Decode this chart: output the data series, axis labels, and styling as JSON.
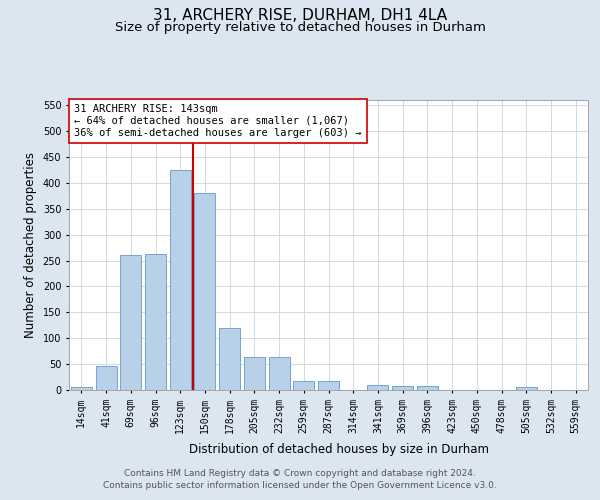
{
  "title_line1": "31, ARCHERY RISE, DURHAM, DH1 4LA",
  "title_line2": "Size of property relative to detached houses in Durham",
  "xlabel": "Distribution of detached houses by size in Durham",
  "ylabel": "Number of detached properties",
  "categories": [
    "14sqm",
    "41sqm",
    "69sqm",
    "96sqm",
    "123sqm",
    "150sqm",
    "178sqm",
    "205sqm",
    "232sqm",
    "259sqm",
    "287sqm",
    "314sqm",
    "341sqm",
    "369sqm",
    "396sqm",
    "423sqm",
    "450sqm",
    "478sqm",
    "505sqm",
    "532sqm",
    "559sqm"
  ],
  "values": [
    5,
    47,
    260,
    263,
    425,
    380,
    120,
    63,
    63,
    17,
    17,
    0,
    10,
    8,
    7,
    0,
    0,
    0,
    5,
    0,
    0
  ],
  "bar_color": "#b8d0e8",
  "bar_edge_color": "#6699cc",
  "vline_color": "#cc0000",
  "annotation_text": "31 ARCHERY RISE: 143sqm\n← 64% of detached houses are smaller (1,067)\n36% of semi-detached houses are larger (603) →",
  "annotation_box_color": "#ffffff",
  "annotation_box_edge_color": "#cc0000",
  "ylim": [
    0,
    560
  ],
  "yticks": [
    0,
    50,
    100,
    150,
    200,
    250,
    300,
    350,
    400,
    450,
    500,
    550
  ],
  "bg_color": "#dce6f0",
  "plot_bg_color": "#ffffff",
  "footer_line1": "Contains HM Land Registry data © Crown copyright and database right 2024.",
  "footer_line2": "Contains public sector information licensed under the Open Government Licence v3.0.",
  "title_fontsize": 11,
  "subtitle_fontsize": 9.5,
  "axis_label_fontsize": 8.5,
  "tick_fontsize": 7,
  "annotation_fontsize": 7.5,
  "footer_fontsize": 6.5
}
